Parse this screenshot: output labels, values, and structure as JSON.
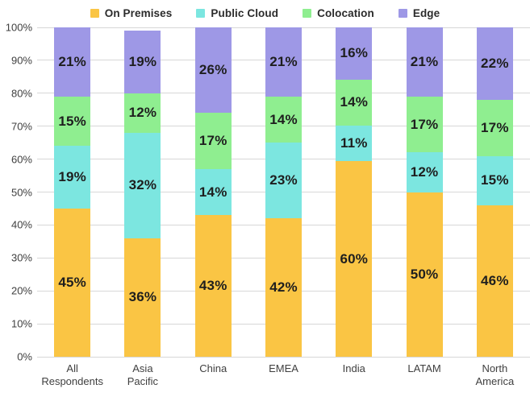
{
  "chart_data": {
    "type": "bar",
    "stacked": true,
    "title": "",
    "xlabel": "",
    "ylabel": "",
    "ylim": [
      0,
      100
    ],
    "ytick_step": 10,
    "ytick_suffix": "%",
    "grid": true,
    "legend_position": "top",
    "bar_label_suffix": "%",
    "categories": [
      "All\nRespondents",
      "Asia\nPacific",
      "China",
      "EMEA",
      "India",
      "LATAM",
      "North\nAmerica"
    ],
    "series": [
      {
        "name": "On Premises",
        "color": "#FAC544",
        "values": [
          45,
          36,
          43,
          42,
          60,
          50,
          46
        ]
      },
      {
        "name": "Public Cloud",
        "color": "#7CE6E0",
        "values": [
          19,
          32,
          14,
          23,
          11,
          12,
          15
        ]
      },
      {
        "name": "Colocation",
        "color": "#8FEE90",
        "values": [
          15,
          12,
          17,
          14,
          14,
          17,
          17
        ]
      },
      {
        "name": "Edge",
        "color": "#9E98E6",
        "values": [
          21,
          19,
          26,
          21,
          16,
          21,
          22
        ]
      }
    ],
    "yticks": [
      "0%",
      "10%",
      "20%",
      "30%",
      "40%",
      "50%",
      "60%",
      "70%",
      "80%",
      "90%",
      "100%"
    ]
  }
}
